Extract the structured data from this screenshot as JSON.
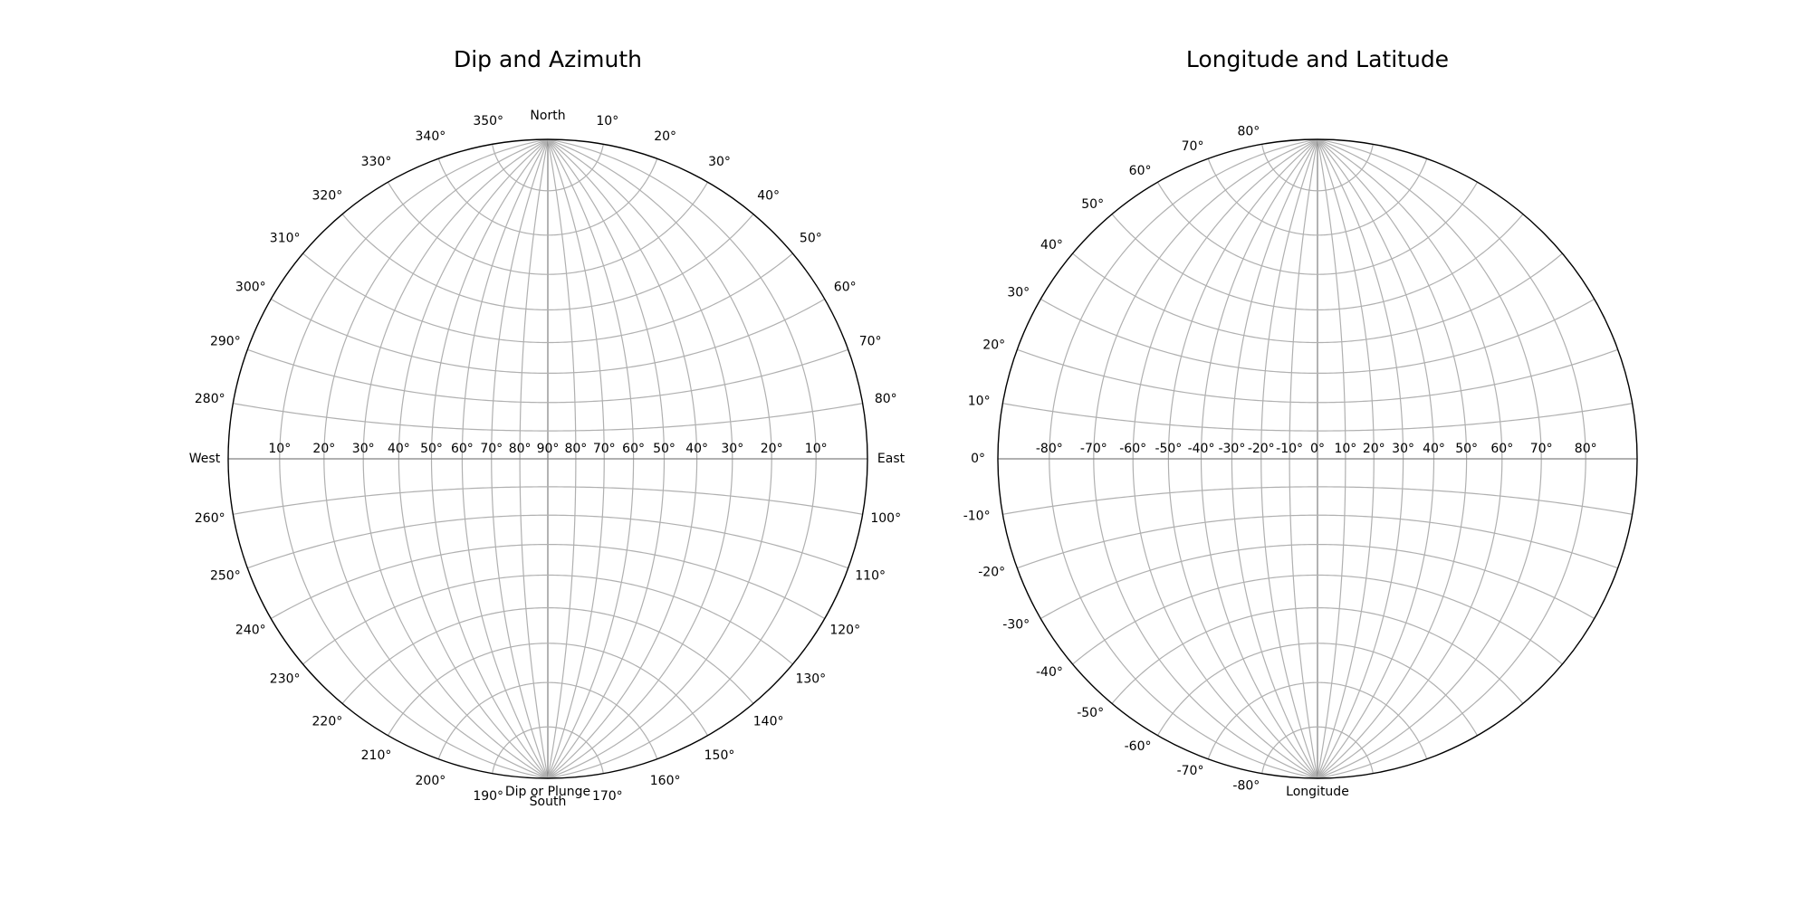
{
  "chart_data": [
    {
      "type": "stereonet",
      "title": "Dip and Azimuth",
      "projection": "equal-angle",
      "grid": true,
      "gridline_spacing_deg": 10,
      "azimuth_ticks": {
        "values": [
          0,
          10,
          20,
          30,
          40,
          50,
          60,
          70,
          80,
          90,
          100,
          110,
          120,
          130,
          140,
          150,
          160,
          170,
          180,
          190,
          200,
          210,
          220,
          230,
          240,
          250,
          260,
          270,
          280,
          290,
          300,
          310,
          320,
          330,
          340,
          350
        ],
        "labels": [
          "North",
          "10°",
          "20°",
          "30°",
          "40°",
          "50°",
          "60°",
          "70°",
          "80°",
          "East",
          "100°",
          "110°",
          "120°",
          "130°",
          "140°",
          "150°",
          "160°",
          "170°",
          "South",
          "190°",
          "200°",
          "210°",
          "220°",
          "230°",
          "240°",
          "250°",
          "260°",
          "West",
          "280°",
          "290°",
          "300°",
          "310°",
          "320°",
          "330°",
          "340°",
          "350°"
        ]
      },
      "dip_ticks": {
        "values": [
          -80,
          -70,
          -60,
          -50,
          -40,
          -30,
          -20,
          -10,
          0,
          10,
          20,
          30,
          40,
          50,
          60,
          70,
          80
        ],
        "labels": [
          "10°",
          "20°",
          "30°",
          "40°",
          "50°",
          "60°",
          "70°",
          "80°",
          "90°",
          "80°",
          "70°",
          "60°",
          "50°",
          "40°",
          "30°",
          "20°",
          "10°"
        ]
      },
      "xlabel": "Dip or Plunge"
    },
    {
      "type": "stereonet",
      "title": "Longitude and Latitude",
      "projection": "equal-angle",
      "grid": true,
      "gridline_spacing_deg": 10,
      "longitude_ticks": {
        "values": [
          -80,
          -70,
          -60,
          -50,
          -40,
          -30,
          -20,
          -10,
          0,
          10,
          20,
          30,
          40,
          50,
          60,
          70,
          80
        ],
        "labels": [
          "-80°",
          "-70°",
          "-60°",
          "-50°",
          "-40°",
          "-30°",
          "-20°",
          "-10°",
          "0°",
          "10°",
          "20°",
          "30°",
          "40°",
          "50°",
          "60°",
          "70°",
          "80°"
        ]
      },
      "latitude_ticks": {
        "values": [
          80,
          70,
          60,
          50,
          40,
          30,
          20,
          10,
          0,
          -10,
          -20,
          -30,
          -40,
          -50,
          -60,
          -70,
          -80
        ],
        "labels": [
          "80°",
          "70°",
          "60°",
          "50°",
          "40°",
          "30°",
          "20°",
          "10°",
          "0°",
          "-10°",
          "-20°",
          "-30°",
          "-40°",
          "-50°",
          "-60°",
          "-70°",
          "-80°"
        ]
      },
      "xlabel": "Longitude"
    }
  ]
}
